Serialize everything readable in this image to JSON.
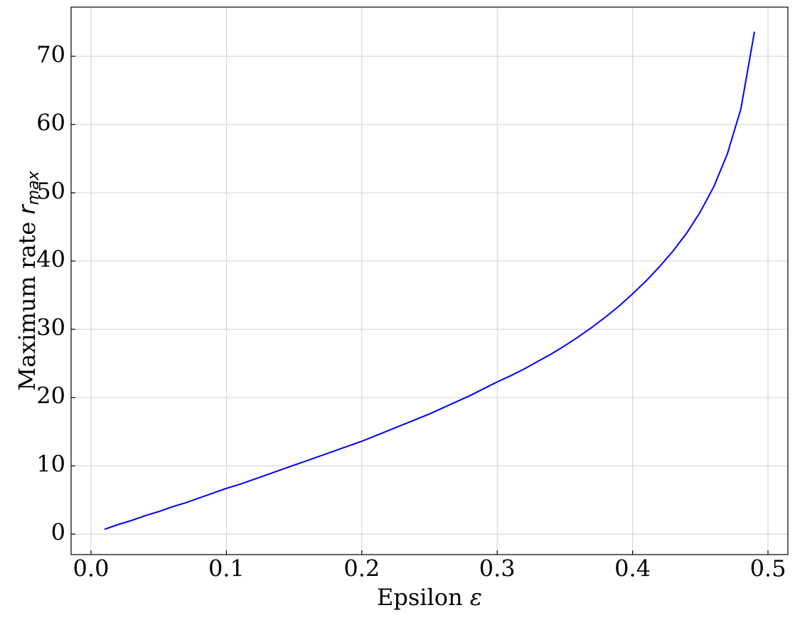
{
  "chart_data": {
    "type": "line",
    "xlabel": {
      "text": "Epsilon",
      "symbol": "ε"
    },
    "ylabel": {
      "text": "Maximum rate",
      "symbol": "r",
      "subscript": "max"
    },
    "x": [
      0.01,
      0.02,
      0.03,
      0.04,
      0.05,
      0.06,
      0.07,
      0.08,
      0.09,
      0.1,
      0.11,
      0.12,
      0.13,
      0.14,
      0.15,
      0.16,
      0.17,
      0.18,
      0.19,
      0.2,
      0.21,
      0.22,
      0.23,
      0.24,
      0.25,
      0.26,
      0.27,
      0.28,
      0.29,
      0.3,
      0.31,
      0.32,
      0.33,
      0.34,
      0.35,
      0.36,
      0.37,
      0.38,
      0.39,
      0.4,
      0.41,
      0.42,
      0.43,
      0.44,
      0.45,
      0.46,
      0.47,
      0.48,
      0.49
    ],
    "series": [
      {
        "color": "#0000ff",
        "values": [
          0.7,
          1.4,
          2.0,
          2.7,
          3.3,
          4.0,
          4.6,
          5.3,
          6.0,
          6.7,
          7.3,
          8.0,
          8.7,
          9.4,
          10.1,
          10.8,
          11.5,
          12.2,
          12.9,
          13.6,
          14.4,
          15.2,
          16.0,
          16.8,
          17.6,
          18.5,
          19.4,
          20.3,
          21.3,
          22.3,
          23.2,
          24.2,
          25.3,
          26.4,
          27.6,
          28.9,
          30.3,
          31.8,
          33.4,
          35.2,
          37.1,
          39.2,
          41.5,
          44.1,
          47.2,
          50.9,
          55.7,
          62.3,
          73.6
        ]
      }
    ],
    "xlim": [
      -0.0147,
      0.5147
    ],
    "ylim": [
      -3.0,
      77.2
    ],
    "xticks": [
      {
        "value": 0,
        "label": "0.0"
      },
      0.1,
      0.2,
      0.3,
      0.4,
      0.5
    ],
    "yticks": [
      0,
      10,
      20,
      30,
      40,
      50,
      60,
      70
    ],
    "grid": true
  }
}
